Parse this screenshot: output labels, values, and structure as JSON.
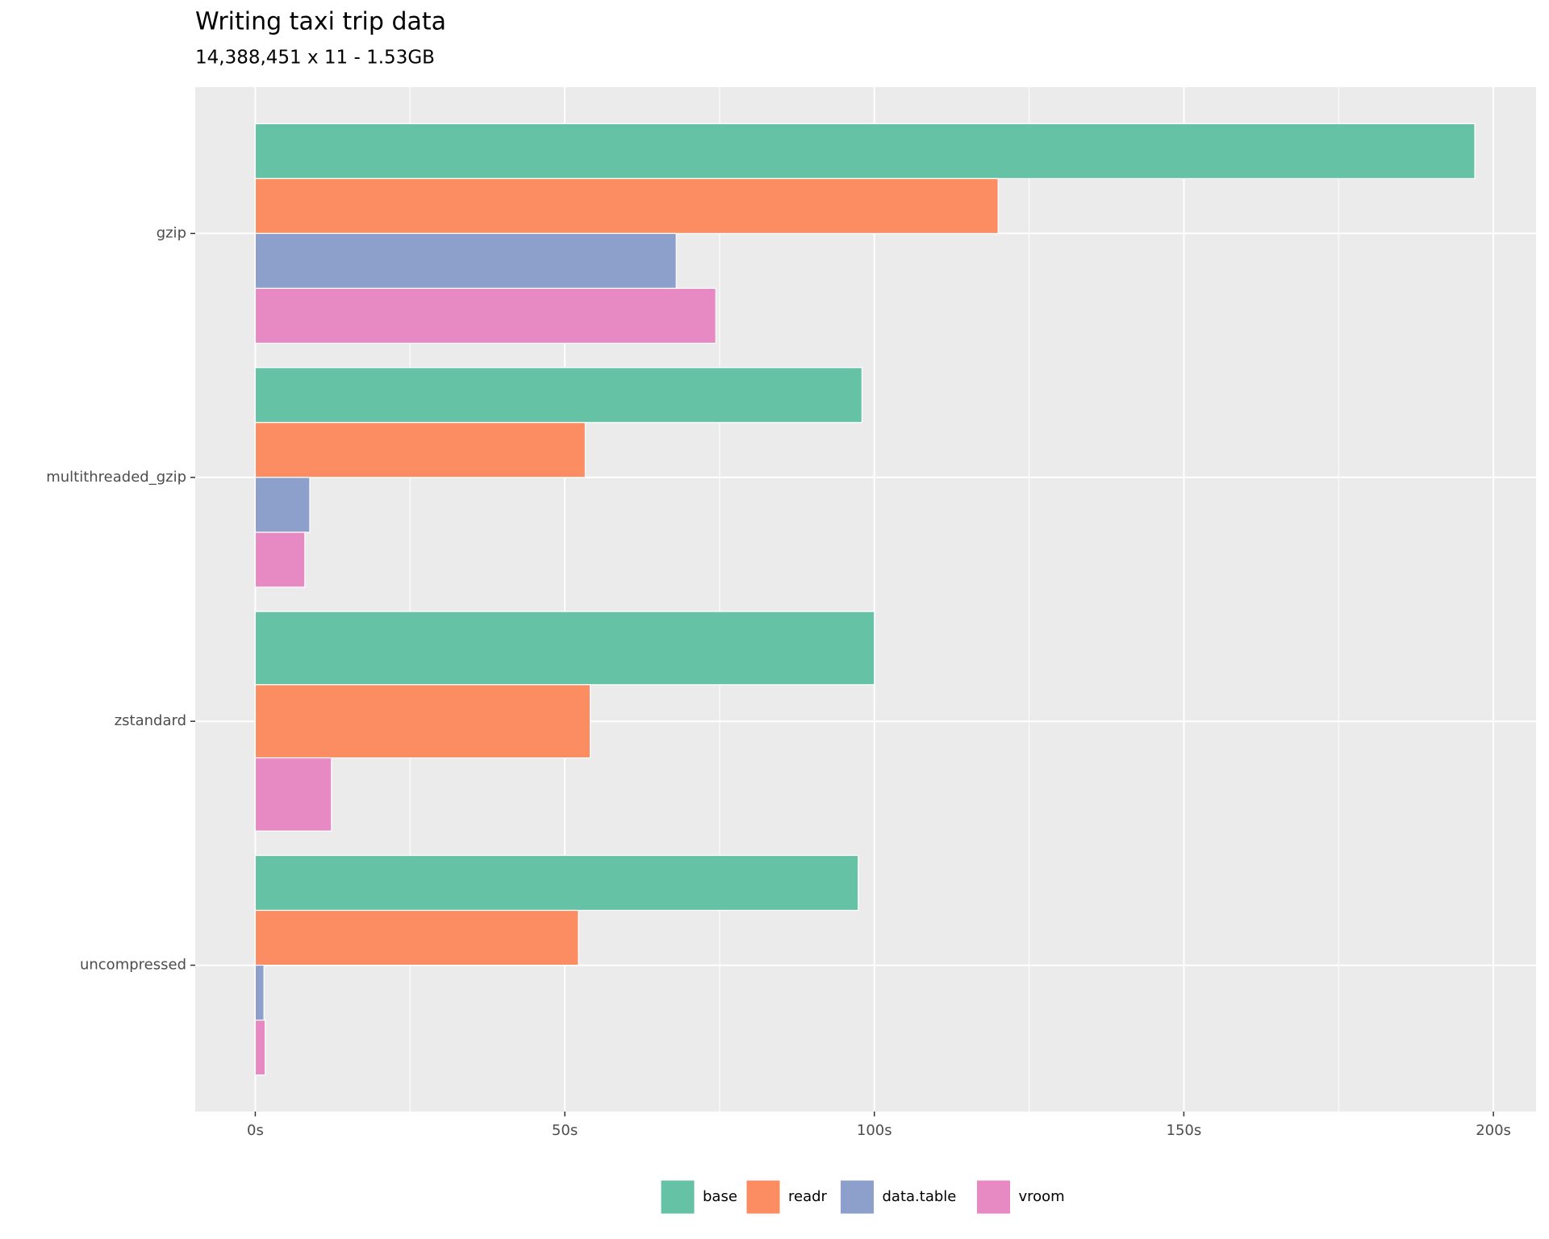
{
  "chart_data": {
    "type": "bar",
    "orientation": "horizontal",
    "title": "Writing taxi trip data",
    "subtitle": "14,388,451 x 11 - 1.53GB",
    "categories": [
      "gzip",
      "multithreaded_gzip",
      "zstandard",
      "uncompressed"
    ],
    "series": [
      {
        "name": "base",
        "color": "#66c2a5",
        "values": [
          197,
          98,
          100,
          97.4
        ]
      },
      {
        "name": "readr",
        "color": "#fc8d62",
        "values": [
          120,
          53.3,
          54.1,
          52.2
        ]
      },
      {
        "name": "data.table",
        "color": "#8da0cb",
        "values": [
          68,
          8.8,
          null,
          1.4
        ]
      },
      {
        "name": "vroom",
        "color": "#e78ac3",
        "values": [
          74.4,
          8,
          12.3,
          1.6
        ]
      }
    ],
    "xlim": [
      -9.7,
      206.9
    ],
    "xticks": [
      {
        "value": 0,
        "label": "0s"
      },
      {
        "value": 50,
        "label": "50s"
      },
      {
        "value": 100,
        "label": "100s"
      },
      {
        "value": 150,
        "label": "150s"
      },
      {
        "value": 200,
        "label": "200s"
      }
    ],
    "grid": true,
    "legend": "bottom"
  }
}
